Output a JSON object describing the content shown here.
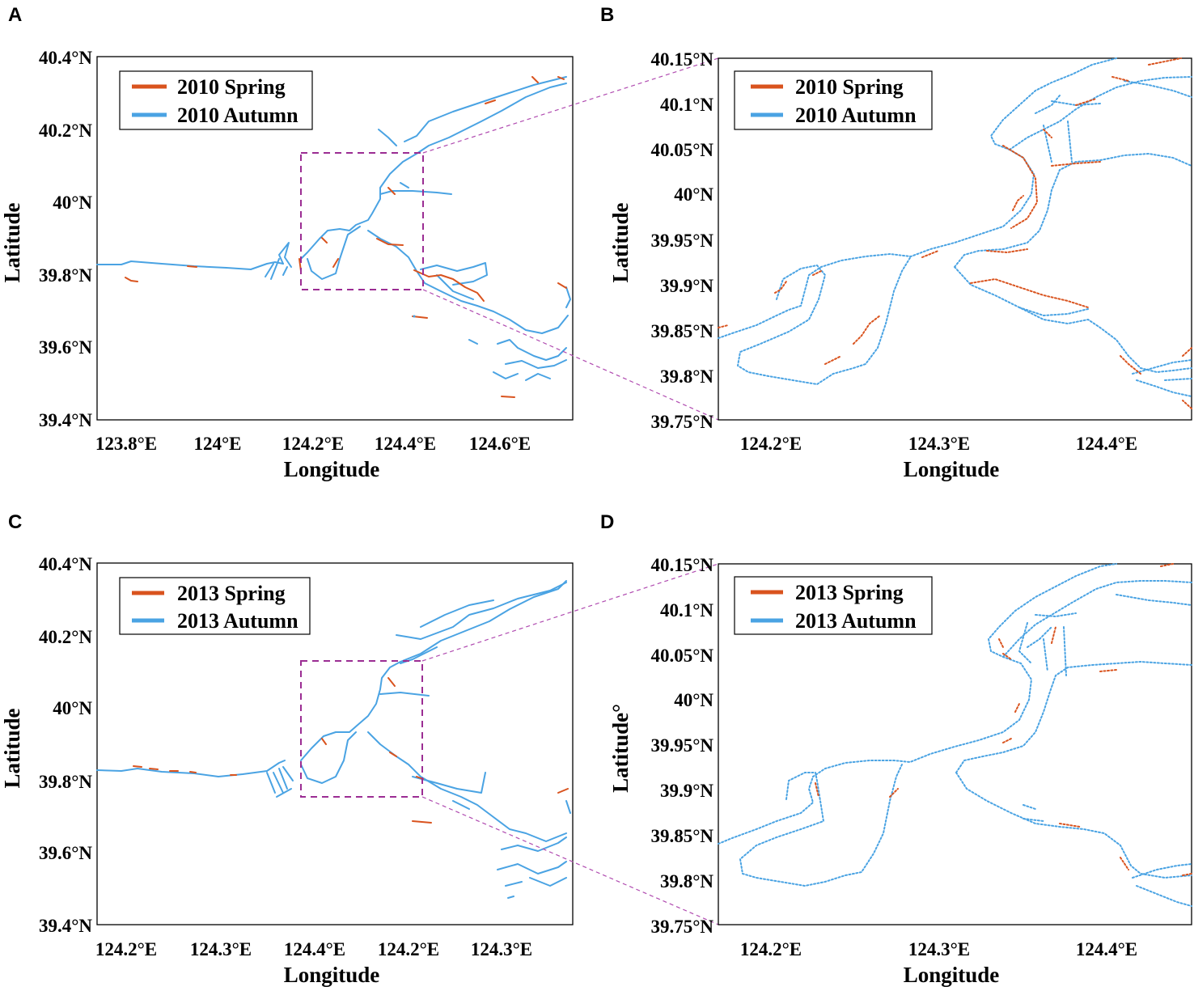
{
  "colors": {
    "spring": "#d9531e",
    "autumn": "#4aa3e3",
    "zoom_box": "#9b2d93"
  },
  "chart_data": [
    {
      "panel": "A",
      "type": "map",
      "xlabel": "Longitude",
      "ylabel": "Latitude",
      "xticks": [
        "123.8°E",
        "124°E",
        "124.2°E",
        "124.4°E",
        "124.6°E"
      ],
      "yticks": [
        "40.4°N",
        "40.2°N",
        "40°N",
        "39.8°N",
        "39.6°N",
        "39.4°N"
      ],
      "legend": [
        "2010 Spring",
        "2010 Autumn"
      ],
      "series": [
        {
          "name": "2010 Spring",
          "color": "#d9531e"
        },
        {
          "name": "2010 Autumn",
          "color": "#4aa3e3"
        }
      ]
    },
    {
      "panel": "B",
      "type": "map",
      "xlabel": "Longitude",
      "ylabel": "Latitude",
      "xticks": [
        "124.2°E",
        "124.3°E",
        "124.4°E"
      ],
      "yticks": [
        "40.15°N",
        "40.1°N",
        "40.05°N",
        "40°N",
        "39.95°N",
        "39.9°N",
        "39.85°N",
        "39.8°N",
        "39.75°N"
      ],
      "legend": [
        "2010 Spring",
        "2010 Autumn"
      ],
      "series": [
        {
          "name": "2010 Spring",
          "color": "#d9531e"
        },
        {
          "name": "2010 Autumn",
          "color": "#4aa3e3"
        }
      ]
    },
    {
      "panel": "C",
      "type": "map",
      "xlabel": "Longitude",
      "ylabel": "Latitude",
      "xticks": [
        "124.2°E",
        "124.3°E",
        "124.4°E",
        "124.2°E",
        "124.3°E"
      ],
      "yticks": [
        "40.4°N",
        "40.2°N",
        "40°N",
        "39.8°N",
        "39.6°N",
        "39.4°N"
      ],
      "legend": [
        "2013 Spring",
        "2013 Autumn"
      ],
      "series": [
        {
          "name": "2013 Spring",
          "color": "#d9531e"
        },
        {
          "name": "2013 Autumn",
          "color": "#4aa3e3"
        }
      ]
    },
    {
      "panel": "D",
      "type": "map",
      "xlabel": "Longitude",
      "ylabel": "Latitude°",
      "xticks": [
        "124.2°E",
        "124.3°E",
        "124.4°E"
      ],
      "yticks": [
        "40.15°N",
        "40.1°N",
        "40.05°N",
        "40°N",
        "39.95°N",
        "39.9°N",
        "39.85°N",
        "39.8°N",
        "39.75°N"
      ],
      "legend": [
        "2013 Spring",
        "2013 Autumn"
      ],
      "series": [
        {
          "name": "2013 Spring",
          "color": "#d9531e"
        },
        {
          "name": "2013 Autumn",
          "color": "#4aa3e3"
        }
      ]
    }
  ],
  "panels": {
    "a": {
      "letter": "A",
      "xlabel": "Longitude",
      "ylabel": "Latitude",
      "xticks": [
        "123.8°E",
        "124°E",
        "124.2°E",
        "124.4°E",
        "124.6°E"
      ],
      "yticks": [
        "40.4°N",
        "40.2°N",
        "40°N",
        "39.8°N",
        "39.6°N",
        "39.4°N"
      ],
      "legend": [
        "2010 Spring",
        "2010 Autumn"
      ]
    },
    "b": {
      "letter": "B",
      "xlabel": "Longitude",
      "ylabel": "Latitude",
      "xticks": [
        "124.2°E",
        "124.3°E",
        "124.4°E"
      ],
      "yticks": [
        "40.15°N",
        "40.1°N",
        "40.05°N",
        "40°N",
        "39.95°N",
        "39.9°N",
        "39.85°N",
        "39.8°N",
        "39.75°N"
      ],
      "legend": [
        "2010 Spring",
        "2010 Autumn"
      ]
    },
    "c": {
      "letter": "C",
      "xlabel": "Longitude",
      "ylabel": "Latitude",
      "xticks": [
        "124.2°E",
        "124.3°E",
        "124.4°E",
        "124.2°E",
        "124.3°E"
      ],
      "yticks": [
        "40.4°N",
        "40.2°N",
        "40°N",
        "39.8°N",
        "39.6°N",
        "39.4°N"
      ],
      "legend": [
        "2013 Spring",
        "2013 Autumn"
      ]
    },
    "d": {
      "letter": "D",
      "xlabel": "Longitude",
      "ylabel": "Latitude°",
      "xticks": [
        "124.2°E",
        "124.3°E",
        "124.4°E"
      ],
      "yticks": [
        "40.15°N",
        "40.1°N",
        "40.05°N",
        "40°N",
        "39.95°N",
        "39.9°N",
        "39.85°N",
        "39.8°N",
        "39.75°N"
      ],
      "legend": [
        "2013 Spring",
        "2013 Autumn"
      ]
    }
  }
}
